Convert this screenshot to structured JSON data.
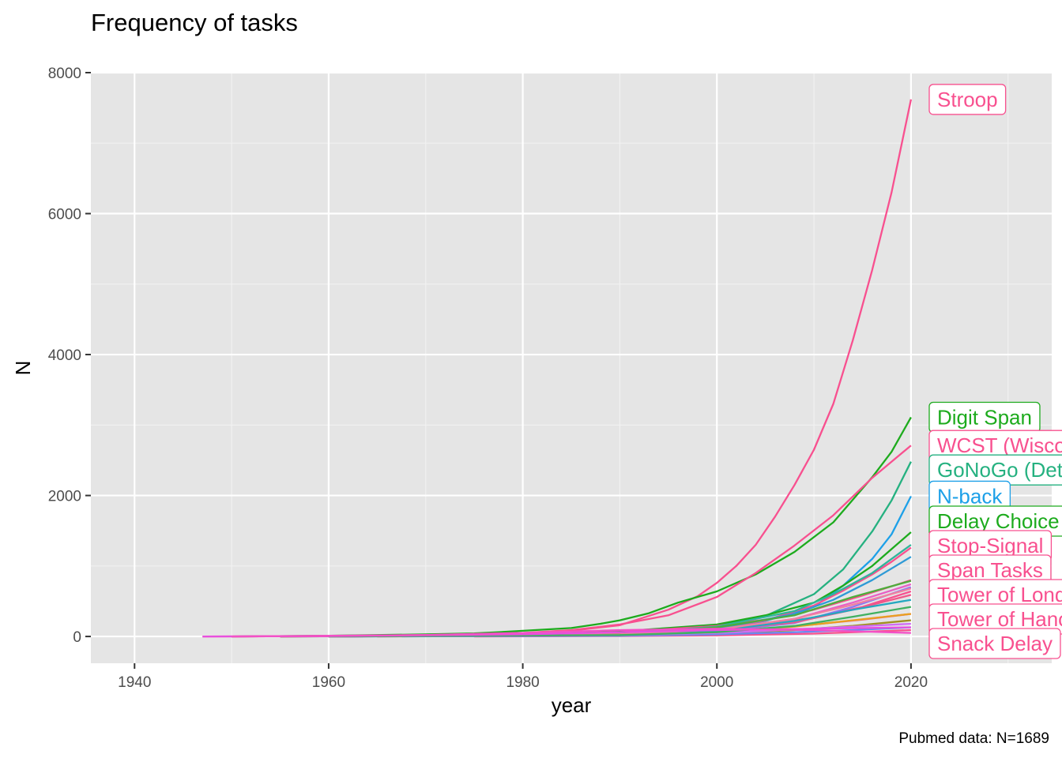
{
  "chart_data": {
    "type": "line",
    "title": "Frequency of tasks",
    "xlabel": "year",
    "ylabel": "N",
    "caption": "Pubmed data: N=1689",
    "xlim": [
      1935.5,
      2034.5
    ],
    "ylim": [
      -380,
      8000
    ],
    "x_ticks": [
      1940,
      1960,
      1980,
      2000,
      2020
    ],
    "y_ticks": [
      0,
      2000,
      4000,
      6000,
      8000
    ],
    "grid": true,
    "legend": "none",
    "series": [
      {
        "name": "Stroop",
        "color": "#F8508F",
        "labeled": true,
        "points": [
          [
            1947,
            0
          ],
          [
            1960,
            5
          ],
          [
            1970,
            15
          ],
          [
            1975,
            25
          ],
          [
            1980,
            45
          ],
          [
            1985,
            80
          ],
          [
            1990,
            160
          ],
          [
            1995,
            380
          ],
          [
            1998,
            570
          ],
          [
            2000,
            760
          ],
          [
            2002,
            1000
          ],
          [
            2004,
            1300
          ],
          [
            2006,
            1700
          ],
          [
            2008,
            2150
          ],
          [
            2010,
            2650
          ],
          [
            2012,
            3300
          ],
          [
            2014,
            4200
          ],
          [
            2016,
            5200
          ],
          [
            2018,
            6300
          ],
          [
            2020,
            7620
          ]
        ]
      },
      {
        "name": "Digit Span",
        "color": "#1DAB1D",
        "labeled": true,
        "points": [
          [
            1950,
            0
          ],
          [
            1960,
            10
          ],
          [
            1970,
            30
          ],
          [
            1975,
            45
          ],
          [
            1978,
            65
          ],
          [
            1980,
            80
          ],
          [
            1985,
            120
          ],
          [
            1988,
            180
          ],
          [
            1990,
            230
          ],
          [
            1993,
            330
          ],
          [
            1996,
            480
          ],
          [
            2000,
            640
          ],
          [
            2004,
            880
          ],
          [
            2008,
            1200
          ],
          [
            2012,
            1620
          ],
          [
            2016,
            2260
          ],
          [
            2018,
            2620
          ],
          [
            2020,
            3110
          ]
        ]
      },
      {
        "name": "WCST (Wisconsin Card Sorting)",
        "color": "#F8508F",
        "labeled": true,
        "points": [
          [
            1950,
            0
          ],
          [
            1960,
            8
          ],
          [
            1970,
            20
          ],
          [
            1980,
            50
          ],
          [
            1985,
            90
          ],
          [
            1990,
            170
          ],
          [
            1995,
            300
          ],
          [
            2000,
            560
          ],
          [
            2004,
            900
          ],
          [
            2008,
            1290
          ],
          [
            2012,
            1720
          ],
          [
            2016,
            2250
          ],
          [
            2018,
            2480
          ],
          [
            2020,
            2710
          ]
        ]
      },
      {
        "name": "GoNoGo (Detection)",
        "color": "#25B180",
        "labeled": true,
        "points": [
          [
            1955,
            0
          ],
          [
            1970,
            5
          ],
          [
            1980,
            15
          ],
          [
            1990,
            50
          ],
          [
            2000,
            150
          ],
          [
            2005,
            290
          ],
          [
            2010,
            600
          ],
          [
            2013,
            950
          ],
          [
            2016,
            1490
          ],
          [
            2018,
            1930
          ],
          [
            2020,
            2480
          ]
        ]
      },
      {
        "name": "N-back",
        "color": "#1DA0E8",
        "labeled": true,
        "points": [
          [
            1960,
            0
          ],
          [
            1980,
            5
          ],
          [
            1990,
            30
          ],
          [
            2000,
            100
          ],
          [
            2005,
            220
          ],
          [
            2010,
            420
          ],
          [
            2013,
            720
          ],
          [
            2016,
            1100
          ],
          [
            2018,
            1450
          ],
          [
            2020,
            1990
          ]
        ]
      },
      {
        "name": "Delay Choice",
        "color": "#1DAB1D",
        "labeled": true,
        "points": [
          [
            1955,
            0
          ],
          [
            1970,
            10
          ],
          [
            1980,
            30
          ],
          [
            1990,
            70
          ],
          [
            2000,
            170
          ],
          [
            2005,
            300
          ],
          [
            2010,
            480
          ],
          [
            2013,
            720
          ],
          [
            2016,
            1000
          ],
          [
            2018,
            1240
          ],
          [
            2020,
            1480
          ]
        ]
      },
      {
        "name": "Stop-Signal",
        "color": "#F8508F",
        "labeled": true,
        "points": [
          [
            1960,
            0
          ],
          [
            1980,
            10
          ],
          [
            1990,
            30
          ],
          [
            2000,
            110
          ],
          [
            2005,
            230
          ],
          [
            2010,
            440
          ],
          [
            2013,
            650
          ],
          [
            2016,
            880
          ],
          [
            2018,
            1060
          ],
          [
            2020,
            1260
          ]
        ]
      },
      {
        "name": "Span Tasks",
        "color": "#F8508F",
        "labeled": true,
        "points": [
          [
            1955,
            0
          ],
          [
            1970,
            10
          ],
          [
            1980,
            30
          ],
          [
            1990,
            60
          ],
          [
            2000,
            150
          ],
          [
            2005,
            240
          ],
          [
            2010,
            380
          ],
          [
            2015,
            580
          ],
          [
            2020,
            800
          ]
        ]
      },
      {
        "name": "Tower of London",
        "color": "#F8508F",
        "labeled": true,
        "points": [
          [
            1965,
            0
          ],
          [
            1980,
            10
          ],
          [
            1990,
            30
          ],
          [
            2000,
            100
          ],
          [
            2005,
            170
          ],
          [
            2010,
            270
          ],
          [
            2015,
            420
          ],
          [
            2020,
            640
          ]
        ]
      },
      {
        "name": "Tower of Hanoi",
        "color": "#F8508F",
        "labeled": true,
        "points": [
          [
            1960,
            0
          ],
          [
            1980,
            10
          ],
          [
            1990,
            30
          ],
          [
            2000,
            70
          ],
          [
            2005,
            110
          ],
          [
            2010,
            170
          ],
          [
            2015,
            240
          ],
          [
            2020,
            320
          ]
        ]
      },
      {
        "name": "Snack Delay",
        "color": "#F8508F",
        "labeled": true,
        "points": [
          [
            1975,
            0
          ],
          [
            1990,
            5
          ],
          [
            2000,
            15
          ],
          [
            2010,
            40
          ],
          [
            2020,
            90
          ]
        ]
      },
      {
        "name": "",
        "color": "#2FB59A",
        "labeled": false,
        "points": [
          [
            1960,
            0
          ],
          [
            1990,
            40
          ],
          [
            2000,
            140
          ],
          [
            2008,
            360
          ],
          [
            2012,
            600
          ],
          [
            2016,
            900
          ],
          [
            2020,
            1300
          ]
        ]
      },
      {
        "name": "",
        "color": "#2E9AD6",
        "labeled": false,
        "points": [
          [
            1960,
            0
          ],
          [
            1990,
            30
          ],
          [
            2000,
            110
          ],
          [
            2008,
            320
          ],
          [
            2012,
            520
          ],
          [
            2016,
            800
          ],
          [
            2020,
            1130
          ]
        ]
      },
      {
        "name": "",
        "color": "#4DAD3B",
        "labeled": false,
        "points": [
          [
            1960,
            0
          ],
          [
            1990,
            40
          ],
          [
            2000,
            130
          ],
          [
            2008,
            300
          ],
          [
            2014,
            560
          ],
          [
            2020,
            790
          ]
        ]
      },
      {
        "name": "",
        "color": "#E85FC4",
        "labeled": false,
        "points": [
          [
            1960,
            0
          ],
          [
            1990,
            30
          ],
          [
            2000,
            90
          ],
          [
            2008,
            250
          ],
          [
            2014,
            480
          ],
          [
            2020,
            740
          ]
        ]
      },
      {
        "name": "",
        "color": "#8E78F0",
        "labeled": false,
        "points": [
          [
            1960,
            0
          ],
          [
            1990,
            20
          ],
          [
            2000,
            70
          ],
          [
            2008,
            190
          ],
          [
            2014,
            420
          ],
          [
            2020,
            700
          ]
        ]
      },
      {
        "name": "",
        "color": "#F0588A",
        "labeled": false,
        "points": [
          [
            1960,
            0
          ],
          [
            1990,
            30
          ],
          [
            2000,
            90
          ],
          [
            2008,
            200
          ],
          [
            2014,
            380
          ],
          [
            2020,
            590
          ]
        ]
      },
      {
        "name": "",
        "color": "#E8A020",
        "labeled": false,
        "points": [
          [
            1960,
            0
          ],
          [
            1990,
            20
          ],
          [
            2000,
            60
          ],
          [
            2008,
            140
          ],
          [
            2014,
            230
          ],
          [
            2020,
            320
          ]
        ]
      },
      {
        "name": "",
        "color": "#23A8C0",
        "labeled": false,
        "points": [
          [
            1960,
            0
          ],
          [
            1990,
            20
          ],
          [
            2000,
            80
          ],
          [
            2008,
            220
          ],
          [
            2014,
            380
          ],
          [
            2020,
            520
          ]
        ]
      },
      {
        "name": "",
        "color": "#A09020",
        "labeled": false,
        "points": [
          [
            1960,
            0
          ],
          [
            1990,
            15
          ],
          [
            2000,
            40
          ],
          [
            2008,
            90
          ],
          [
            2014,
            150
          ],
          [
            2020,
            230
          ]
        ]
      },
      {
        "name": "",
        "color": "#6A88F0",
        "labeled": false,
        "points": [
          [
            1960,
            0
          ],
          [
            1990,
            10
          ],
          [
            2000,
            30
          ],
          [
            2008,
            60
          ],
          [
            2014,
            90
          ],
          [
            2020,
            130
          ]
        ]
      },
      {
        "name": "",
        "color": "#D06CF5",
        "labeled": false,
        "points": [
          [
            1960,
            0
          ],
          [
            1990,
            20
          ],
          [
            2000,
            50
          ],
          [
            2008,
            100
          ],
          [
            2014,
            140
          ],
          [
            2020,
            180
          ]
        ]
      },
      {
        "name": "",
        "color": "#F080A0",
        "labeled": false,
        "points": [
          [
            1960,
            0
          ],
          [
            1990,
            30
          ],
          [
            2000,
            100
          ],
          [
            2008,
            250
          ],
          [
            2014,
            450
          ],
          [
            2020,
            680
          ]
        ]
      },
      {
        "name": "",
        "color": "#40B060",
        "labeled": false,
        "points": [
          [
            1960,
            0
          ],
          [
            1990,
            20
          ],
          [
            2000,
            60
          ],
          [
            2008,
            150
          ],
          [
            2014,
            280
          ],
          [
            2020,
            420
          ]
        ]
      },
      {
        "name": "",
        "color": "#E84FE0",
        "labeled": false,
        "points": [
          [
            1947,
            0
          ],
          [
            1960,
            5
          ],
          [
            1980,
            30
          ],
          [
            1990,
            60
          ],
          [
            2000,
            90
          ],
          [
            2010,
            110
          ],
          [
            2020,
            130
          ]
        ]
      },
      {
        "name": "",
        "color": "#F450C8",
        "labeled": false,
        "points": [
          [
            1950,
            0
          ],
          [
            1970,
            20
          ],
          [
            1980,
            50
          ],
          [
            1990,
            90
          ],
          [
            2000,
            110
          ],
          [
            2010,
            90
          ],
          [
            2020,
            50
          ]
        ]
      }
    ]
  }
}
